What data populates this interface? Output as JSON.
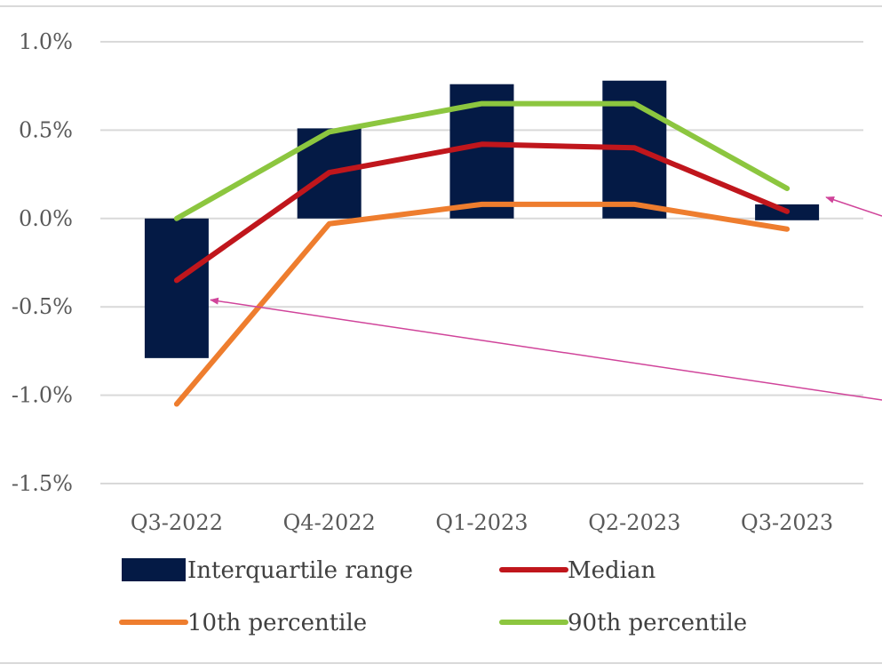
{
  "colors": {
    "iqr": "#041a45",
    "median": "#c0161c",
    "p10": "#ee7d2e",
    "p90": "#8cc63f",
    "grid": "#d9d9d9",
    "arrow": "#d0449a"
  },
  "chart_data": {
    "type": "bar",
    "title": "",
    "xlabel": "",
    "ylabel": "",
    "categories": [
      "Q3-2022",
      "Q4-2022",
      "Q1-2023",
      "Q2-2023",
      "Q3-2023"
    ],
    "ylim": [
      -1.5,
      1.0
    ],
    "yticks": [
      1.0,
      0.5,
      0.0,
      -0.5,
      -1.0,
      -1.5
    ],
    "ytick_labels": [
      "1.0%",
      "0.5%",
      "0.0%",
      "-0.5%",
      "-1.0%",
      "-1.5%"
    ],
    "grid": true,
    "legend_position": "bottom",
    "bars": {
      "name": "Interquartile range",
      "low": [
        -0.79,
        0.0,
        0.0,
        0.0,
        -0.01
      ],
      "high": [
        0.0,
        0.51,
        0.76,
        0.78,
        0.08
      ]
    },
    "series": [
      {
        "key": "median",
        "name": "Median",
        "values": [
          -0.35,
          0.26,
          0.42,
          0.4,
          0.04
        ]
      },
      {
        "key": "p10",
        "name": "10th percentile",
        "values": [
          -1.05,
          -0.03,
          0.08,
          0.08,
          -0.06
        ]
      },
      {
        "key": "p90",
        "name": "90th percentile",
        "values": [
          0.0,
          0.49,
          0.65,
          0.65,
          0.17
        ]
      }
    ]
  }
}
